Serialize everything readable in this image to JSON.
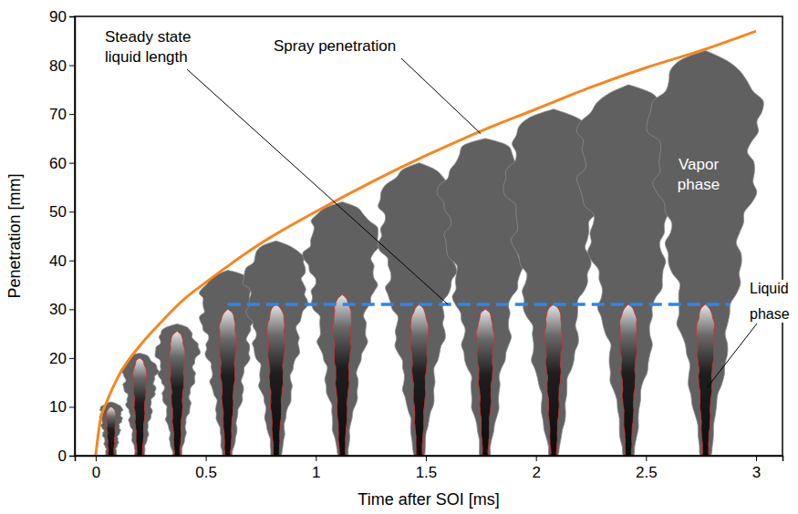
{
  "chart_data": {
    "type": "line",
    "xlabel": "Time after SOI [ms]",
    "ylabel": "Penetration [mm]",
    "xlim": [
      -0.095,
      3.12
    ],
    "ylim": [
      0,
      90
    ],
    "xticks": [
      0,
      0.5,
      1,
      1.5,
      2,
      2.5,
      3
    ],
    "yticks": [
      0,
      10,
      20,
      30,
      40,
      50,
      60,
      70,
      80,
      90
    ],
    "series": [
      {
        "name": "Spray penetration",
        "color": "#f7861e",
        "line_style": "solid",
        "x": [
          0,
          0.02,
          0.05,
          0.1,
          0.2,
          0.3,
          0.4,
          0.5,
          0.75,
          1,
          1.25,
          1.5,
          1.75,
          2,
          2.25,
          2.5,
          2.75,
          3
        ],
        "values": [
          0,
          7,
          11,
          16,
          22.5,
          27.5,
          32,
          35.5,
          43.5,
          50,
          56,
          61.5,
          66.5,
          71,
          75.5,
          79.5,
          83,
          87
        ]
      },
      {
        "name": "Steady state liquid length",
        "color": "#2e86e8",
        "line_style": "dashed",
        "x": [
          0.6,
          2.88
        ],
        "values": [
          31,
          31
        ]
      }
    ],
    "frames": {
      "x": [
        0.07,
        0.2,
        0.37,
        0.6,
        0.82,
        1.12,
        1.47,
        1.77,
        2.08,
        2.42,
        2.77
      ],
      "vapor_penetration": [
        11,
        21,
        27,
        38,
        44,
        52,
        60,
        65,
        71,
        76,
        83
      ],
      "liquid_length": [
        10,
        20,
        25.5,
        30,
        31,
        33,
        31,
        30,
        31,
        31,
        31
      ]
    },
    "annotations": [
      {
        "text": "Vapor phase"
      },
      {
        "text": "Liquid phase"
      }
    ]
  }
}
